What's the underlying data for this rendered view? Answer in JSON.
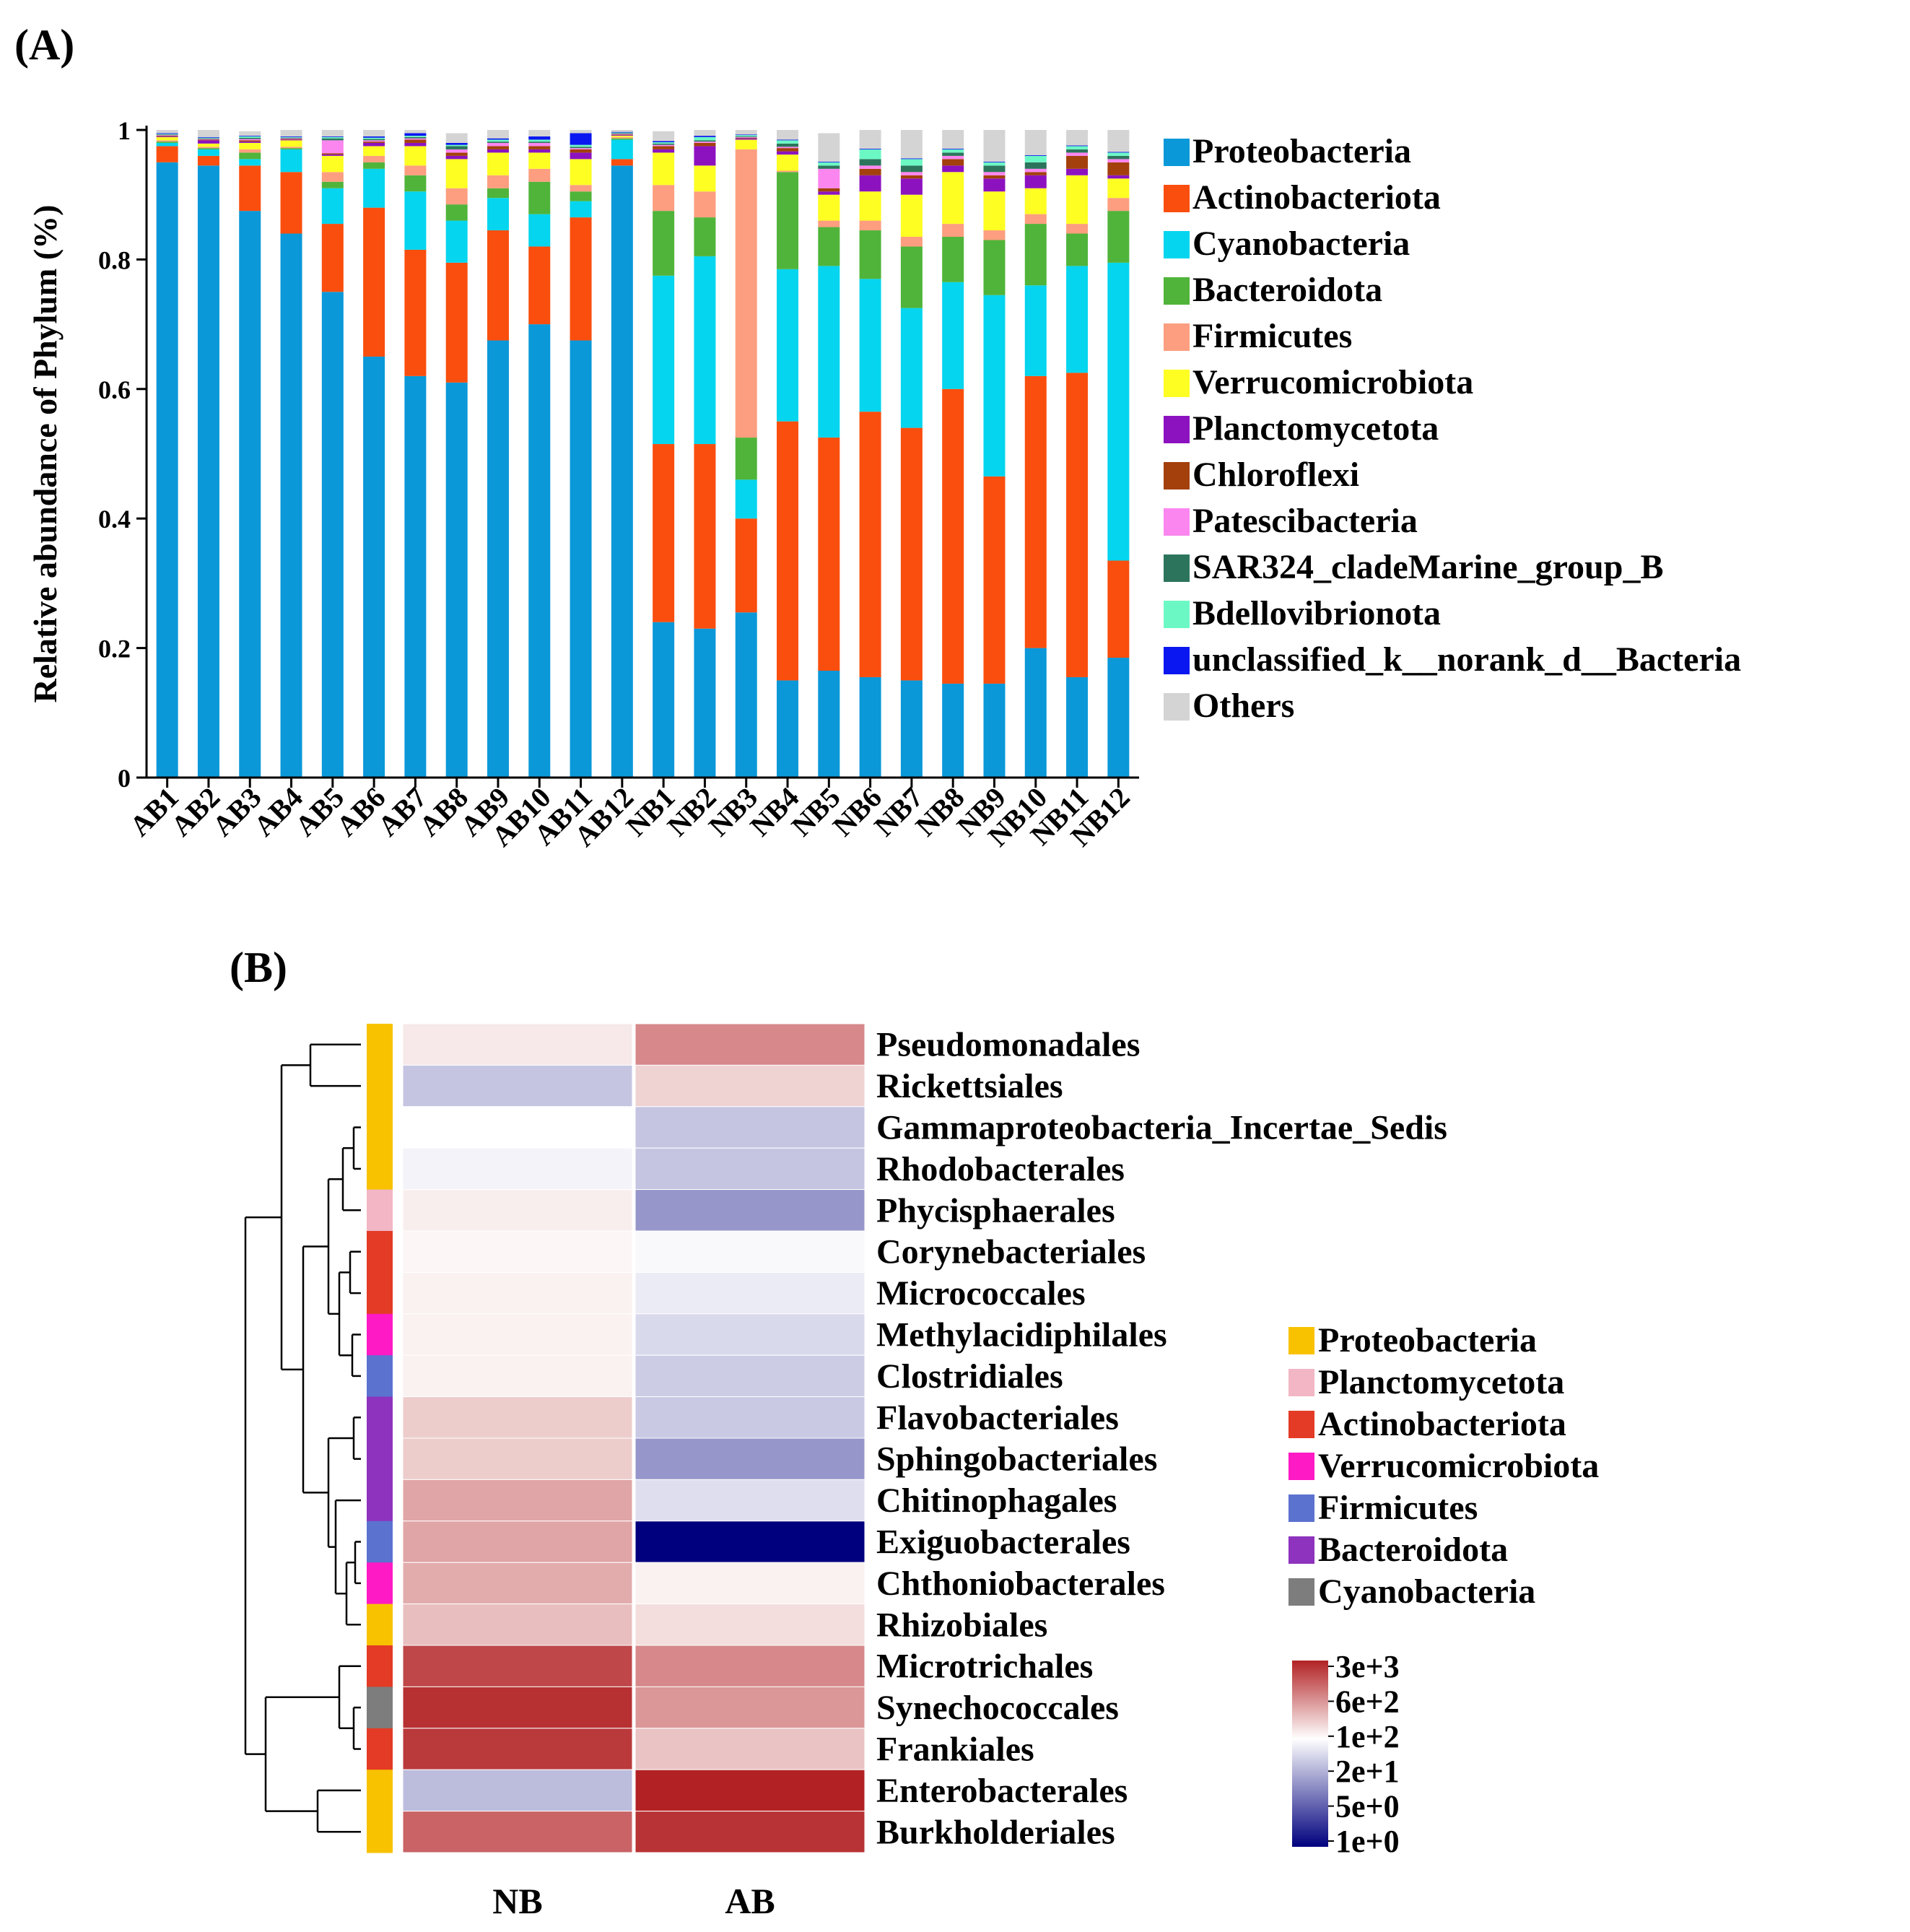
{
  "panels": {
    "a_label": "(A)",
    "b_label": "(B)"
  },
  "colors": {
    "Proteobacteria": "#0a98d8",
    "Actinobacteriota": "#fa4e0e",
    "Cyanobacteria": "#05d5ee",
    "Bacteroidota": "#50b43a",
    "Firmicutes": "#fc9e7f",
    "Verrucomicrobiota": "#fefe23",
    "Planctomycetota": "#8c12c0",
    "Chloroflexi": "#a3400c",
    "Patescibacteria": "#fb86f0",
    "SAR324_cladeMarine_group_B": "#2c755c",
    "Bdellovibrionota": "#6cf8c5",
    "unclassified_k__norank_d__Bacteria": "#0a17f0",
    "Others": "#d4d4d4"
  },
  "chart_data": [
    {
      "type": "bar",
      "stacked": true,
      "title": "",
      "ylabel": "Relative abundance of Phylum (%)",
      "xlabel": "",
      "ylim": [
        0,
        1
      ],
      "yticks": [
        0,
        0.2,
        0.4,
        0.6,
        0.8,
        1
      ],
      "ytick_labels": [
        "0",
        "0.2",
        "0.4",
        "0.6",
        "0.8",
        "1"
      ],
      "legend_position": "right",
      "categories": [
        "AB1",
        "AB2",
        "AB3",
        "AB4",
        "AB5",
        "AB6",
        "AB7",
        "AB8",
        "AB9",
        "AB10",
        "AB11",
        "AB12",
        "NB1",
        "NB2",
        "NB3",
        "NB4",
        "NB5",
        "NB6",
        "NB7",
        "NB8",
        "NB9",
        "NB10",
        "NB11",
        "NB12"
      ],
      "series": [
        {
          "name": "Proteobacteria",
          "values": [
            0.95,
            0.945,
            0.875,
            0.84,
            0.75,
            0.65,
            0.62,
            0.61,
            0.675,
            0.7,
            0.675,
            0.945,
            0.24,
            0.23,
            0.255,
            0.15,
            0.165,
            0.155,
            0.15,
            0.145,
            0.145,
            0.2,
            0.155,
            0.185
          ]
        },
        {
          "name": "Actinobacteriota",
          "values": [
            0.025,
            0.015,
            0.07,
            0.095,
            0.105,
            0.23,
            0.195,
            0.185,
            0.17,
            0.12,
            0.19,
            0.01,
            0.275,
            0.285,
            0.145,
            0.4,
            0.36,
            0.41,
            0.39,
            0.455,
            0.32,
            0.42,
            0.47,
            0.15
          ]
        },
        {
          "name": "Cyanobacteria",
          "values": [
            0.005,
            0.01,
            0.01,
            0.035,
            0.055,
            0.06,
            0.09,
            0.065,
            0.05,
            0.05,
            0.025,
            0.03,
            0.26,
            0.29,
            0.06,
            0.235,
            0.265,
            0.205,
            0.185,
            0.165,
            0.28,
            0.14,
            0.165,
            0.46
          ]
        },
        {
          "name": "Bacteroidota",
          "values": [
            0.002,
            0.002,
            0.01,
            0.002,
            0.01,
            0.01,
            0.025,
            0.025,
            0.015,
            0.05,
            0.015,
            0.002,
            0.1,
            0.06,
            0.065,
            0.15,
            0.06,
            0.075,
            0.095,
            0.07,
            0.085,
            0.095,
            0.05,
            0.08
          ]
        },
        {
          "name": "Firmicutes",
          "values": [
            0.002,
            0.002,
            0.005,
            0.002,
            0.015,
            0.01,
            0.015,
            0.025,
            0.02,
            0.02,
            0.01,
            0.002,
            0.04,
            0.04,
            0.445,
            0.002,
            0.01,
            0.015,
            0.015,
            0.02,
            0.015,
            0.015,
            0.015,
            0.02
          ]
        },
        {
          "name": "Verrucomicrobiota",
          "values": [
            0.005,
            0.005,
            0.01,
            0.01,
            0.025,
            0.015,
            0.03,
            0.045,
            0.035,
            0.025,
            0.04,
            0.002,
            0.05,
            0.04,
            0.015,
            0.025,
            0.04,
            0.045,
            0.065,
            0.08,
            0.06,
            0.04,
            0.075,
            0.03
          ]
        },
        {
          "name": "Planctomycetota",
          "values": [
            0.001,
            0.005,
            0.002,
            0.001,
            0.002,
            0.005,
            0.005,
            0.005,
            0.005,
            0.005,
            0.01,
            0.001,
            0.005,
            0.03,
            0.002,
            0.005,
            0.005,
            0.025,
            0.025,
            0.01,
            0.02,
            0.02,
            0.01,
            0.005
          ]
        },
        {
          "name": "Chloroflexi",
          "values": [
            0.001,
            0.001,
            0.002,
            0.001,
            0.002,
            0.002,
            0.005,
            0.005,
            0.005,
            0.005,
            0.005,
            0.001,
            0.005,
            0.005,
            0.001,
            0.005,
            0.005,
            0.01,
            0.005,
            0.01,
            0.005,
            0.005,
            0.02,
            0.02
          ]
        },
        {
          "name": "Patescibacteria",
          "values": [
            0.001,
            0.001,
            0.002,
            0.001,
            0.02,
            0.002,
            0.002,
            0.005,
            0.005,
            0.005,
            0.002,
            0.001,
            0.002,
            0.002,
            0.001,
            0.002,
            0.03,
            0.005,
            0.005,
            0.005,
            0.005,
            0.005,
            0.005,
            0.005
          ]
        },
        {
          "name": "SAR324_cladeMarine_group_B",
          "values": [
            0.001,
            0.001,
            0.002,
            0.001,
            0.003,
            0.002,
            0.002,
            0.005,
            0.002,
            0.002,
            0.002,
            0.001,
            0.002,
            0.002,
            0.001,
            0.005,
            0.005,
            0.01,
            0.01,
            0.005,
            0.01,
            0.01,
            0.005,
            0.005
          ]
        },
        {
          "name": "Bdellovibrionota",
          "values": [
            0.001,
            0.001,
            0.002,
            0.001,
            0.002,
            0.002,
            0.002,
            0.002,
            0.003,
            0.003,
            0.003,
            0.001,
            0.002,
            0.005,
            0.002,
            0.005,
            0.005,
            0.015,
            0.01,
            0.005,
            0.005,
            0.01,
            0.005,
            0.005
          ]
        },
        {
          "name": "unclassified_k__norank_d__Bacteria",
          "values": [
            0.001,
            0.001,
            0.001,
            0.001,
            0.001,
            0.002,
            0.004,
            0.003,
            0.002,
            0.005,
            0.018,
            0.001,
            0.002,
            0.002,
            0.001,
            0.001,
            0.001,
            0.001,
            0.001,
            0.001,
            0.001,
            0.001,
            0.001,
            0.001
          ]
        },
        {
          "name": "Others",
          "values": [
            0.005,
            0.011,
            0.007,
            0.01,
            0.01,
            0.01,
            0.005,
            0.015,
            0.013,
            0.01,
            0.005,
            0.003,
            0.015,
            0.009,
            0.007,
            0.015,
            0.044,
            0.029,
            0.044,
            0.029,
            0.049,
            0.039,
            0.024,
            0.034
          ]
        }
      ]
    },
    {
      "type": "heatmap",
      "title": "",
      "columns": [
        "NB",
        "AB"
      ],
      "rows": [
        "Pseudomonadales",
        "Rickettsiales",
        "Gammaproteobacteria_Incertae_Sedis",
        "Rhodobacterales",
        "Phycisphaerales",
        "Corynebacteriales",
        "Micrococcales",
        "Methylacidiphilales",
        "Clostridiales",
        "Flavobacteriales",
        "Sphingobacteriales",
        "Chitinophagales",
        "Exiguobacterales",
        "Chthoniobacterales",
        "Rhizobiales",
        "Microtrichales",
        "Synechococcales",
        "Frankiales",
        "Enterobacterales",
        "Burkholderiales"
      ],
      "row_phylum": [
        "Proteobacteria",
        "Proteobacteria",
        "Proteobacteria",
        "Proteobacteria",
        "Planctomycetota",
        "Actinobacteriota",
        "Actinobacteriota",
        "Verrucomicrobiota",
        "Firmicutes",
        "Bacteroidota",
        "Bacteroidota",
        "Bacteroidota",
        "Firmicutes",
        "Verrucomicrobiota",
        "Proteobacteria",
        "Actinobacteriota",
        "Cyanobacteria",
        "Actinobacteriota",
        "Proteobacteria",
        "Proteobacteria"
      ],
      "values": [
        [
          140,
          620
        ],
        [
          35,
          200
        ],
        [
          100,
          35
        ],
        [
          80,
          35
        ],
        [
          130,
          15
        ],
        [
          115,
          90
        ],
        [
          125,
          70
        ],
        [
          125,
          50
        ],
        [
          125,
          40
        ],
        [
          220,
          38
        ],
        [
          220,
          15
        ],
        [
          400,
          55
        ],
        [
          400,
          1
        ],
        [
          360,
          125
        ],
        [
          270,
          170
        ],
        [
          1700,
          620
        ],
        [
          2400,
          500
        ],
        [
          2100,
          250
        ],
        [
          30,
          3000
        ],
        [
          1100,
          2300
        ]
      ],
      "phylum_legend": [
        "Proteobacteria",
        "Planctomycetota",
        "Actinobacteriota",
        "Verrucomicrobiota",
        "Firmicutes",
        "Bacteroidota",
        "Cyanobacteria"
      ],
      "phylum_colors": {
        "Proteobacteria": "#f8c200",
        "Planctomycetota": "#f2b6c4",
        "Actinobacteriota": "#e33b26",
        "Verrucomicrobiota": "#fe1ac4",
        "Firmicutes": "#5b72cf",
        "Bacteroidota": "#8e33be",
        "Cyanobacteria": "#7d7d7d"
      },
      "colorbar": {
        "labels": [
          "3e+3",
          "6e+2",
          "1e+2",
          "2e+1",
          "5e+0",
          "1e+0"
        ],
        "scale": "log",
        "colors": {
          "high": "#b22224",
          "mid": "#ffffff",
          "low": "#00007e"
        }
      }
    }
  ]
}
